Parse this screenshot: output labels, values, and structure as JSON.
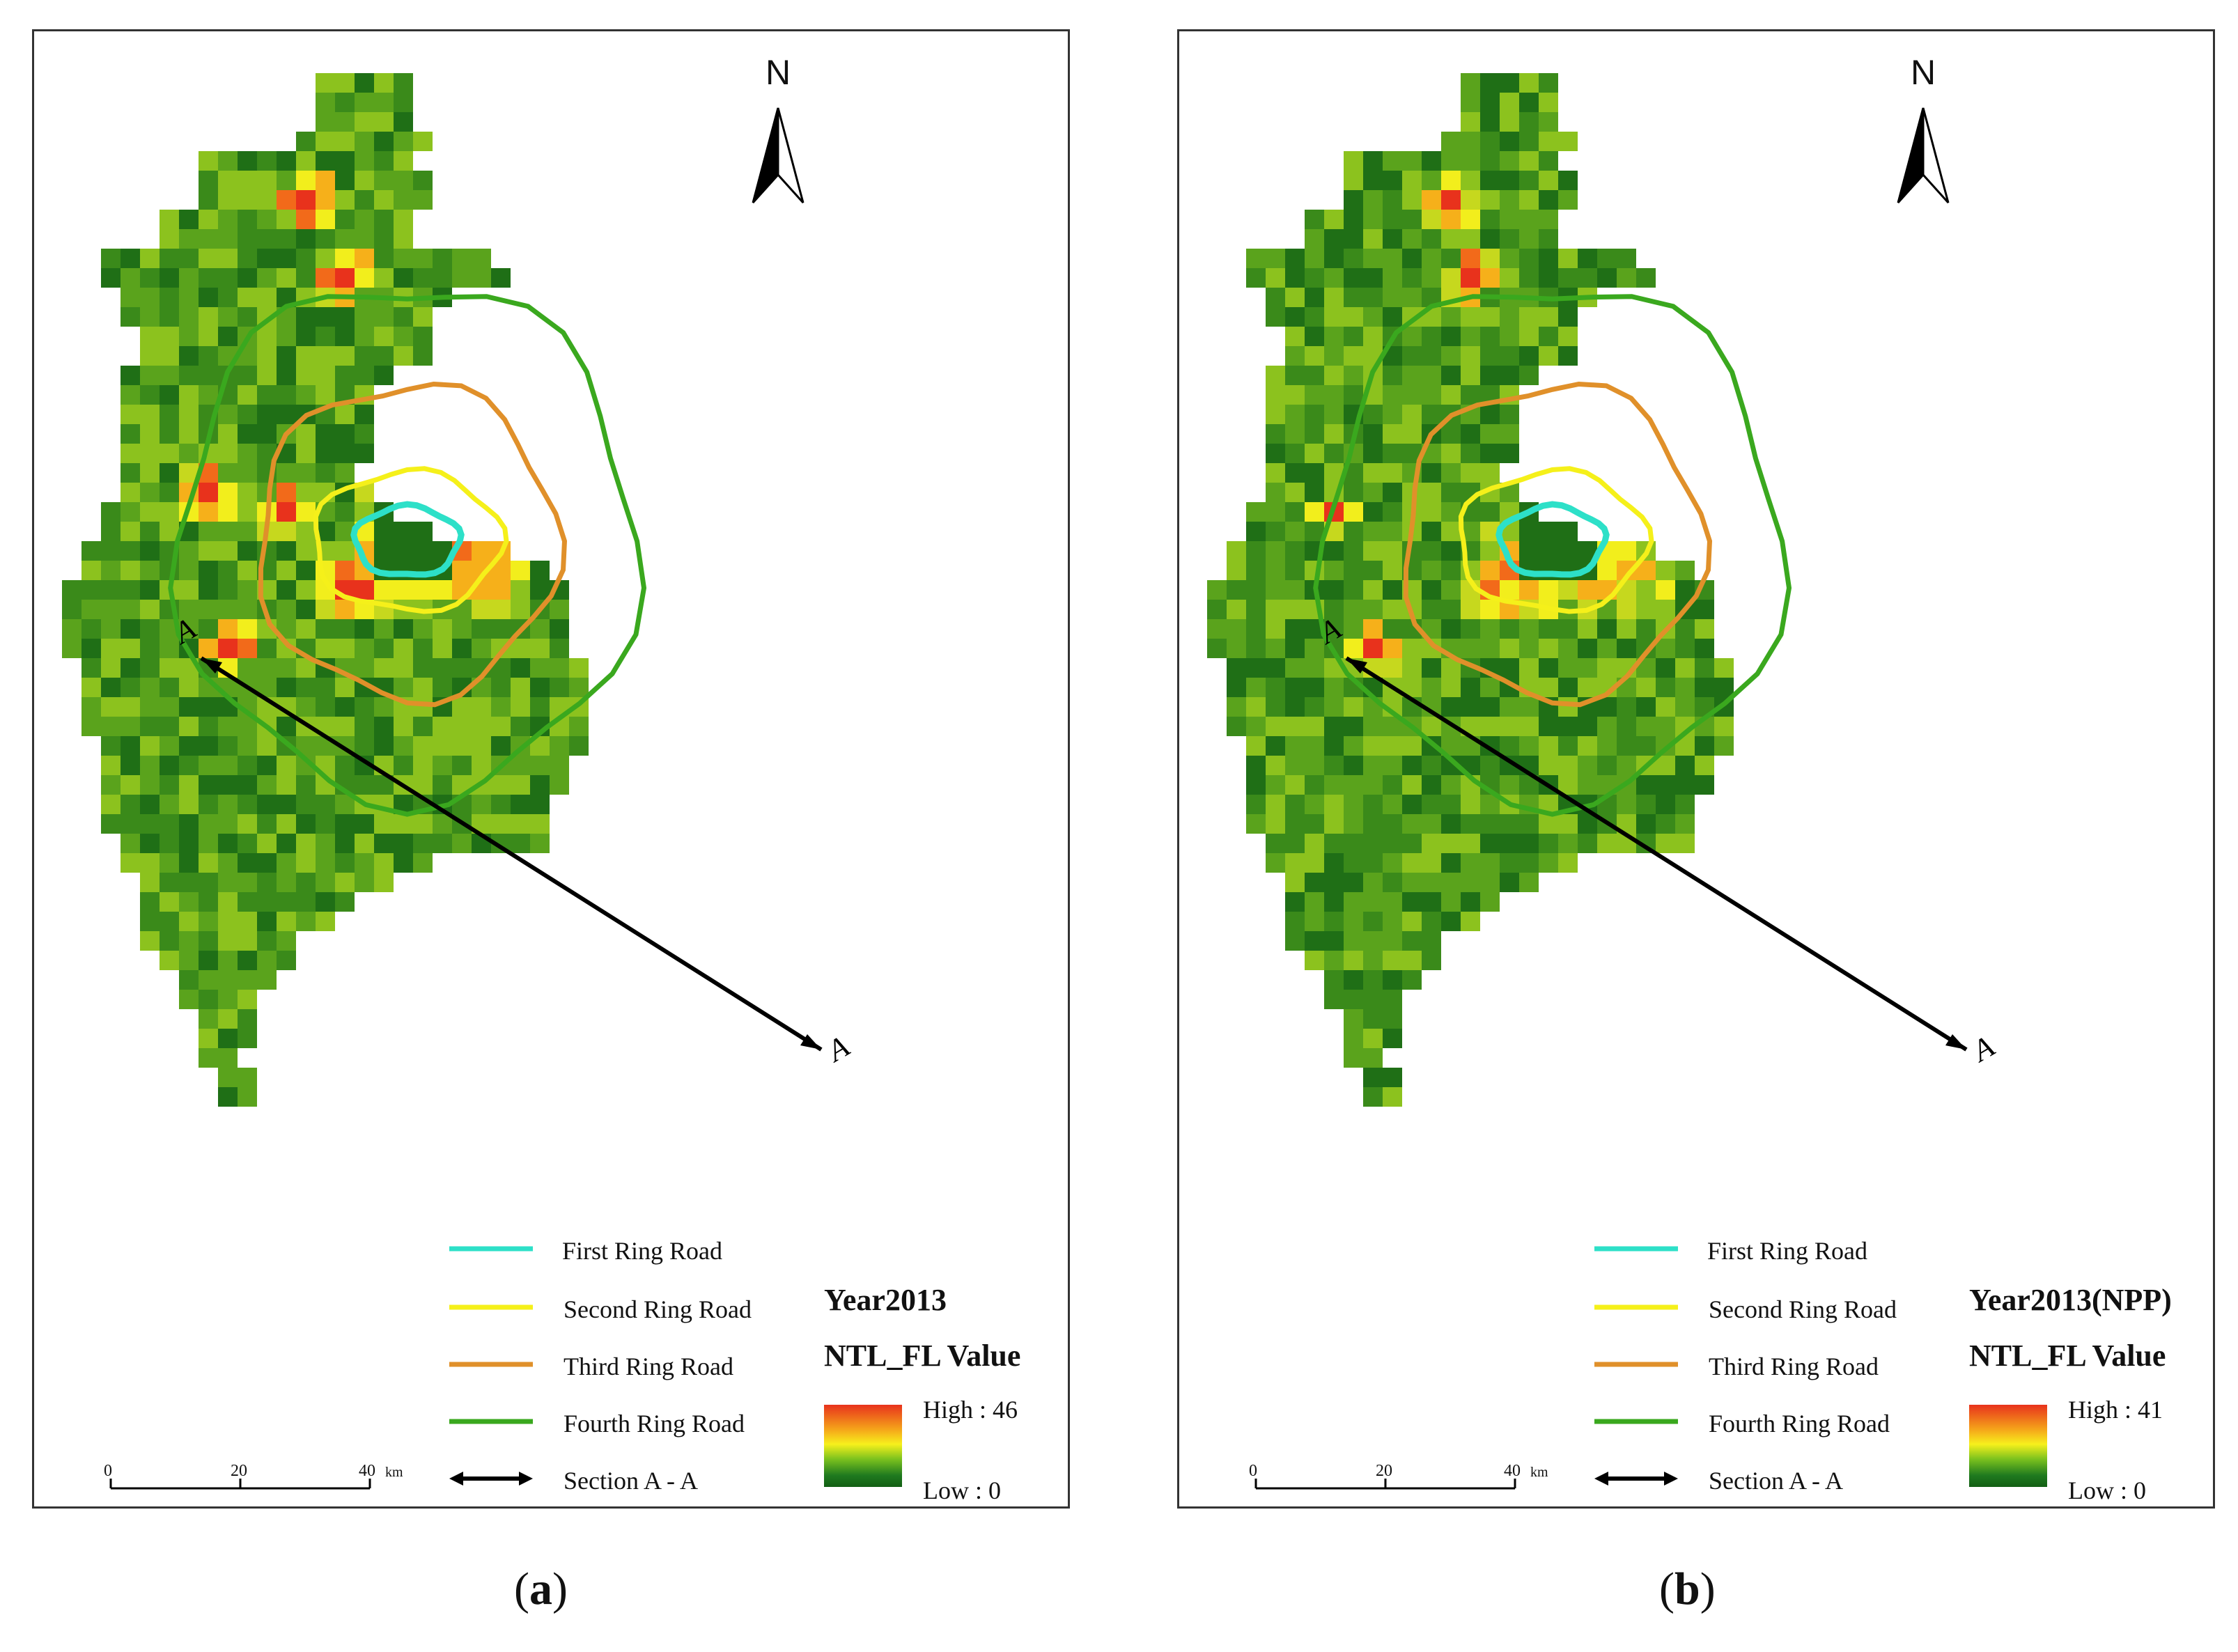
{
  "panels": [
    {
      "id": "a",
      "title": "Year2013",
      "subtitle": "NTL_FL Value",
      "ramp_high": "High : 46",
      "ramp_low": "Low : 0",
      "legend": {
        "first": "First Ring Road",
        "second": "Second Ring Road",
        "third": "Third Ring Road",
        "fourth": "Fourth Ring Road",
        "section": "Section A - A"
      },
      "north": "N",
      "section_marker": "A",
      "scale": {
        "t0": "0",
        "t1": "20",
        "t2": "40",
        "unit": "km"
      },
      "caption_open": "(",
      "caption_letter": "a",
      "caption_close": ")"
    },
    {
      "id": "b",
      "title": "Year2013(NPP)",
      "subtitle": "NTL_FL Value",
      "ramp_high": "High : 41",
      "ramp_low": "Low : 0",
      "legend": {
        "first": "First Ring Road",
        "second": "Second Ring Road",
        "third": "Third Ring Road",
        "fourth": "Fourth Ring Road",
        "section": "Section A - A"
      },
      "north": "N",
      "section_marker": "A",
      "scale": {
        "t0": "0",
        "t1": "20",
        "t2": "40",
        "unit": "km"
      },
      "caption_open": "(",
      "caption_letter": "b",
      "caption_close": ")"
    }
  ],
  "colors": {
    "first_ring": "#2de0c8",
    "second_ring": "#f5f01a",
    "third_ring": "#e0902a",
    "fourth_ring": "#3aa81e",
    "section_line": "#000000"
  }
}
